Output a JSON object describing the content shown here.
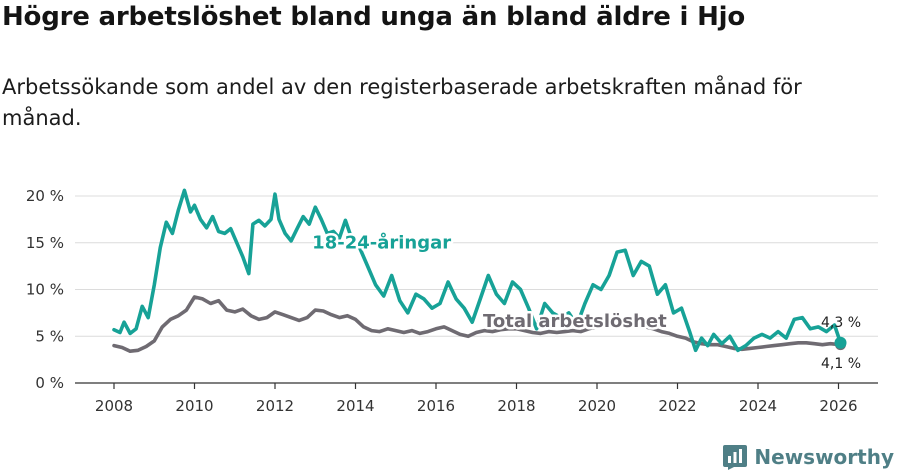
{
  "title": "Högre arbetslöshet bland unga än bland äldre i Hjo",
  "subtitle": "Arbetssökande som andel av den registerbaserade arbetskraften månad för månad.",
  "logo": {
    "text": "Newsworthy",
    "icon": "newsworthy-logo-icon"
  },
  "colors": {
    "young": "#17a297",
    "total": "#6f6b72",
    "grid": "#dcdcdc",
    "axis": "#333333"
  },
  "chart_data": {
    "type": "line",
    "title": "Högre arbetslöshet bland unga än bland äldre i Hjo",
    "xlabel": "",
    "ylabel": "",
    "xlim": [
      2007.5,
      2026.8
    ],
    "ylim": [
      0,
      20
    ],
    "x_ticks": [
      2008,
      2010,
      2012,
      2014,
      2016,
      2018,
      2020,
      2022,
      2024,
      2026
    ],
    "y_ticks": [
      {
        "value": 0,
        "label": "0 %"
      },
      {
        "value": 5,
        "label": "5 %"
      },
      {
        "value": 10,
        "label": "10 %"
      },
      {
        "value": 15,
        "label": "15 %"
      },
      {
        "value": 20,
        "label": "20 %"
      }
    ],
    "grid": true,
    "series": [
      {
        "name": "18-24-åringar",
        "label": "18-24-åringar",
        "end_label": "4,3 %",
        "points": [
          [
            2008.0,
            5.7
          ],
          [
            2008.15,
            5.4
          ],
          [
            2008.25,
            6.5
          ],
          [
            2008.4,
            5.3
          ],
          [
            2008.55,
            5.8
          ],
          [
            2008.7,
            8.2
          ],
          [
            2008.85,
            7.0
          ],
          [
            2009.0,
            10.5
          ],
          [
            2009.15,
            14.5
          ],
          [
            2009.3,
            17.2
          ],
          [
            2009.45,
            16.0
          ],
          [
            2009.6,
            18.5
          ],
          [
            2009.75,
            20.6
          ],
          [
            2009.9,
            18.3
          ],
          [
            2010.0,
            19.0
          ],
          [
            2010.15,
            17.5
          ],
          [
            2010.3,
            16.6
          ],
          [
            2010.45,
            17.8
          ],
          [
            2010.6,
            16.2
          ],
          [
            2010.75,
            16.0
          ],
          [
            2010.9,
            16.5
          ],
          [
            2011.05,
            15.0
          ],
          [
            2011.2,
            13.5
          ],
          [
            2011.35,
            11.7
          ],
          [
            2011.45,
            17.0
          ],
          [
            2011.6,
            17.4
          ],
          [
            2011.75,
            16.8
          ],
          [
            2011.9,
            17.5
          ],
          [
            2012.0,
            20.2
          ],
          [
            2012.1,
            17.5
          ],
          [
            2012.25,
            16.0
          ],
          [
            2012.4,
            15.2
          ],
          [
            2012.55,
            16.5
          ],
          [
            2012.7,
            17.8
          ],
          [
            2012.85,
            17.0
          ],
          [
            2013.0,
            18.8
          ],
          [
            2013.15,
            17.5
          ],
          [
            2013.3,
            16.0
          ],
          [
            2013.45,
            16.2
          ],
          [
            2013.6,
            15.5
          ],
          [
            2013.75,
            17.4
          ],
          [
            2013.9,
            15.5
          ],
          [
            2014.1,
            14.5
          ],
          [
            2014.3,
            12.5
          ],
          [
            2014.5,
            10.5
          ],
          [
            2014.7,
            9.3
          ],
          [
            2014.9,
            11.5
          ],
          [
            2015.1,
            8.8
          ],
          [
            2015.3,
            7.5
          ],
          [
            2015.5,
            9.5
          ],
          [
            2015.7,
            9.0
          ],
          [
            2015.9,
            8.0
          ],
          [
            2016.1,
            8.5
          ],
          [
            2016.3,
            10.8
          ],
          [
            2016.5,
            9.0
          ],
          [
            2016.7,
            8.0
          ],
          [
            2016.9,
            6.5
          ],
          [
            2017.1,
            9.0
          ],
          [
            2017.3,
            11.5
          ],
          [
            2017.5,
            9.5
          ],
          [
            2017.7,
            8.5
          ],
          [
            2017.9,
            10.8
          ],
          [
            2018.1,
            10.0
          ],
          [
            2018.3,
            8.0
          ],
          [
            2018.5,
            5.8
          ],
          [
            2018.7,
            8.5
          ],
          [
            2018.9,
            7.5
          ],
          [
            2019.1,
            7.0
          ],
          [
            2019.3,
            7.5
          ],
          [
            2019.5,
            6.2
          ],
          [
            2019.7,
            8.5
          ],
          [
            2019.9,
            10.5
          ],
          [
            2020.1,
            10.0
          ],
          [
            2020.3,
            11.5
          ],
          [
            2020.5,
            14.0
          ],
          [
            2020.7,
            14.2
          ],
          [
            2020.9,
            11.5
          ],
          [
            2021.1,
            13.0
          ],
          [
            2021.3,
            12.5
          ],
          [
            2021.5,
            9.5
          ],
          [
            2021.7,
            10.5
          ],
          [
            2021.9,
            7.5
          ],
          [
            2022.1,
            8.0
          ],
          [
            2022.3,
            5.5
          ],
          [
            2022.45,
            3.5
          ],
          [
            2022.6,
            4.8
          ],
          [
            2022.75,
            4.0
          ],
          [
            2022.9,
            5.2
          ],
          [
            2023.1,
            4.2
          ],
          [
            2023.3,
            5.0
          ],
          [
            2023.5,
            3.5
          ],
          [
            2023.7,
            4.0
          ],
          [
            2023.9,
            4.8
          ],
          [
            2024.1,
            5.2
          ],
          [
            2024.3,
            4.8
          ],
          [
            2024.5,
            5.5
          ],
          [
            2024.7,
            4.8
          ],
          [
            2024.9,
            6.8
          ],
          [
            2025.1,
            7.0
          ],
          [
            2025.3,
            5.8
          ],
          [
            2025.5,
            6.0
          ],
          [
            2025.7,
            5.5
          ],
          [
            2025.9,
            6.2
          ],
          [
            2026.05,
            4.3
          ]
        ]
      },
      {
        "name": "Total arbetslöshet",
        "label": "Total arbetslöshet",
        "end_label": "4,1 %",
        "points": [
          [
            2008.0,
            4.0
          ],
          [
            2008.2,
            3.8
          ],
          [
            2008.4,
            3.4
          ],
          [
            2008.6,
            3.5
          ],
          [
            2008.8,
            3.9
          ],
          [
            2009.0,
            4.5
          ],
          [
            2009.2,
            6.0
          ],
          [
            2009.4,
            6.8
          ],
          [
            2009.6,
            7.2
          ],
          [
            2009.8,
            7.8
          ],
          [
            2010.0,
            9.2
          ],
          [
            2010.2,
            9.0
          ],
          [
            2010.4,
            8.5
          ],
          [
            2010.6,
            8.8
          ],
          [
            2010.8,
            7.8
          ],
          [
            2011.0,
            7.6
          ],
          [
            2011.2,
            7.9
          ],
          [
            2011.4,
            7.2
          ],
          [
            2011.6,
            6.8
          ],
          [
            2011.8,
            7.0
          ],
          [
            2012.0,
            7.6
          ],
          [
            2012.2,
            7.3
          ],
          [
            2012.4,
            7.0
          ],
          [
            2012.6,
            6.7
          ],
          [
            2012.8,
            7.0
          ],
          [
            2013.0,
            7.8
          ],
          [
            2013.2,
            7.7
          ],
          [
            2013.4,
            7.3
          ],
          [
            2013.6,
            7.0
          ],
          [
            2013.8,
            7.2
          ],
          [
            2014.0,
            6.8
          ],
          [
            2014.2,
            6.0
          ],
          [
            2014.4,
            5.6
          ],
          [
            2014.6,
            5.5
          ],
          [
            2014.8,
            5.8
          ],
          [
            2015.0,
            5.6
          ],
          [
            2015.2,
            5.4
          ],
          [
            2015.4,
            5.6
          ],
          [
            2015.6,
            5.3
          ],
          [
            2015.8,
            5.5
          ],
          [
            2016.0,
            5.8
          ],
          [
            2016.2,
            6.0
          ],
          [
            2016.4,
            5.6
          ],
          [
            2016.6,
            5.2
          ],
          [
            2016.8,
            5.0
          ],
          [
            2017.0,
            5.4
          ],
          [
            2017.2,
            5.6
          ],
          [
            2017.4,
            5.5
          ],
          [
            2017.6,
            5.7
          ],
          [
            2017.8,
            5.8
          ],
          [
            2018.0,
            5.8
          ],
          [
            2018.2,
            5.6
          ],
          [
            2018.4,
            5.4
          ],
          [
            2018.6,
            5.3
          ],
          [
            2018.8,
            5.5
          ],
          [
            2019.0,
            5.4
          ],
          [
            2019.2,
            5.5
          ],
          [
            2019.4,
            5.6
          ],
          [
            2019.6,
            5.5
          ],
          [
            2019.8,
            5.8
          ],
          [
            2020.0,
            6.0
          ],
          [
            2020.2,
            6.1
          ],
          [
            2020.4,
            6.2
          ],
          [
            2020.6,
            6.4
          ],
          [
            2020.8,
            6.3
          ],
          [
            2021.0,
            6.2
          ],
          [
            2021.2,
            6.0
          ],
          [
            2021.4,
            5.8
          ],
          [
            2021.6,
            5.5
          ],
          [
            2021.8,
            5.3
          ],
          [
            2022.0,
            5.0
          ],
          [
            2022.2,
            4.8
          ],
          [
            2022.4,
            4.4
          ],
          [
            2022.6,
            4.2
          ],
          [
            2022.8,
            4.1
          ],
          [
            2023.0,
            4.1
          ],
          [
            2023.2,
            3.9
          ],
          [
            2023.4,
            3.7
          ],
          [
            2023.6,
            3.6
          ],
          [
            2023.8,
            3.7
          ],
          [
            2024.0,
            3.8
          ],
          [
            2024.2,
            3.9
          ],
          [
            2024.4,
            4.0
          ],
          [
            2024.6,
            4.1
          ],
          [
            2024.8,
            4.2
          ],
          [
            2025.0,
            4.3
          ],
          [
            2025.2,
            4.3
          ],
          [
            2025.4,
            4.2
          ],
          [
            2025.6,
            4.1
          ],
          [
            2025.8,
            4.2
          ],
          [
            2026.05,
            4.1
          ]
        ]
      }
    ]
  }
}
